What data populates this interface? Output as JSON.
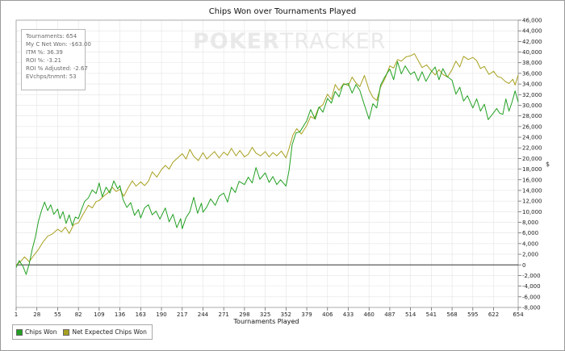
{
  "watermark": {
    "strong": "POKER",
    "light": "TRACKER"
  },
  "stats": {
    "tournaments": "Tournaments: 654",
    "net_won": "My C Net Won: -$63.00",
    "itm": "ITM %: 36.39",
    "roi": "ROI %: -3.21",
    "roi_adjusted": "ROI % Adjusted: -2.67",
    "evchips": "EVchps/tnmnt: 53"
  },
  "corner_mark": "$",
  "colors": {
    "chips_won": "#22a022",
    "net_expected": "#a8a020",
    "grid": "#e4e4e4",
    "zero_line": "#333333"
  },
  "chart_data": {
    "type": "line",
    "title": "Chips Won over Tournaments Played",
    "xlabel": "Tournaments Played",
    "ylabel": "",
    "xlim": [
      1,
      654
    ],
    "ylim": [
      -8000,
      46000
    ],
    "x_ticks": [
      1,
      28,
      55,
      82,
      109,
      136,
      163,
      190,
      217,
      244,
      271,
      298,
      325,
      352,
      379,
      406,
      433,
      460,
      487,
      514,
      541,
      568,
      595,
      622,
      654
    ],
    "y_ticks": [
      -8000,
      -6000,
      -4000,
      -2000,
      0,
      2000,
      4000,
      6000,
      8000,
      10000,
      12000,
      14000,
      16000,
      18000,
      20000,
      22000,
      24000,
      26000,
      28000,
      30000,
      32000,
      34000,
      36000,
      38000,
      40000,
      42000,
      44000,
      46000
    ],
    "y_tick_labels": [
      "-8,000",
      "-6,000",
      "-4,000",
      "-2,000",
      "0",
      "2,000",
      "4,000",
      "6,000",
      "8,000",
      "10,000",
      "12,000",
      "14,000",
      "16,000",
      "18,000",
      "20,000",
      "22,000",
      "24,000",
      "26,000",
      "28,000",
      "30,000",
      "32,000",
      "34,000",
      "36,000",
      "38,000",
      "40,000",
      "42,000",
      "44,000",
      "46,000"
    ],
    "grid": true,
    "legend_position": "bottom-left",
    "series": [
      {
        "name": "Chips Won",
        "color": "#22a022",
        "x": [
          1,
          5,
          10,
          14,
          18,
          22,
          26,
          30,
          34,
          38,
          42,
          46,
          50,
          55,
          58,
          62,
          66,
          70,
          74,
          78,
          82,
          86,
          90,
          95,
          100,
          105,
          109,
          113,
          118,
          123,
          128,
          133,
          136,
          140,
          145,
          150,
          155,
          160,
          163,
          168,
          173,
          178,
          183,
          188,
          190,
          195,
          200,
          205,
          210,
          215,
          217,
          222,
          227,
          232,
          237,
          242,
          244,
          249,
          254,
          260,
          265,
          271,
          276,
          281,
          286,
          291,
          298,
          303,
          308,
          313,
          318,
          325,
          330,
          335,
          340,
          345,
          352,
          356,
          360,
          365,
          370,
          379,
          384,
          390,
          395,
          400,
          406,
          411,
          416,
          421,
          426,
          433,
          438,
          443,
          448,
          453,
          460,
          465,
          470,
          475,
          480,
          487,
          492,
          497,
          502,
          507,
          514,
          519,
          524,
          529,
          534,
          541,
          546,
          551,
          556,
          561,
          568,
          573,
          578,
          583,
          588,
          595,
          600,
          605,
          610,
          615,
          622,
          626,
          630,
          634,
          638,
          642,
          646,
          650,
          654
        ],
        "values": [
          -500,
          800,
          -300,
          -1800,
          200,
          3000,
          5200,
          8200,
          10200,
          11800,
          10200,
          11300,
          9500,
          10500,
          8700,
          10000,
          7800,
          9400,
          7400,
          9000,
          8700,
          10400,
          11900,
          12600,
          14100,
          13400,
          15400,
          12800,
          14600,
          13500,
          15800,
          14300,
          14900,
          12300,
          10800,
          11700,
          9300,
          10400,
          8800,
          10700,
          11300,
          9400,
          10100,
          8600,
          9200,
          10700,
          8100,
          9500,
          7000,
          8700,
          6800,
          8900,
          10000,
          12700,
          9700,
          11600,
          9900,
          10900,
          12400,
          11200,
          12900,
          13500,
          11800,
          14600,
          13600,
          15700,
          15100,
          16500,
          15400,
          18300,
          16100,
          17300,
          15500,
          16600,
          15100,
          16000,
          14800,
          17800,
          22600,
          24800,
          25000,
          27100,
          29200,
          27400,
          29700,
          28700,
          31300,
          30400,
          32600,
          31600,
          33800,
          34100,
          32300,
          33900,
          32800,
          30500,
          27400,
          30300,
          29500,
          33800,
          35200,
          36800,
          34800,
          38200,
          35900,
          37400,
          35800,
          36300,
          34600,
          36300,
          34500,
          36300,
          37200,
          34800,
          36900,
          35500,
          34700,
          32100,
          33400,
          30800,
          31800,
          29500,
          31200,
          28900,
          30200,
          27300,
          28600,
          29400,
          28500,
          28300,
          31200,
          28900,
          30600,
          32700,
          30600
        ]
      },
      {
        "name": "Net Expected Chips Won",
        "color": "#a8a020",
        "x": [
          1,
          6,
          12,
          18,
          24,
          30,
          36,
          42,
          48,
          55,
          60,
          65,
          70,
          76,
          82,
          88,
          95,
          100,
          105,
          109,
          114,
          120,
          126,
          131,
          136,
          141,
          146,
          152,
          157,
          163,
          168,
          173,
          178,
          184,
          190,
          195,
          200,
          205,
          211,
          217,
          222,
          227,
          232,
          238,
          244,
          249,
          254,
          259,
          265,
          271,
          276,
          281,
          287,
          292,
          298,
          303,
          308,
          313,
          319,
          325,
          330,
          335,
          340,
          346,
          352,
          356,
          361,
          366,
          372,
          379,
          384,
          389,
          394,
          400,
          406,
          411,
          416,
          421,
          427,
          433,
          438,
          443,
          448,
          454,
          460,
          465,
          470,
          475,
          481,
          487,
          492,
          497,
          502,
          508,
          514,
          519,
          524,
          529,
          535,
          541,
          546,
          551,
          556,
          562,
          568,
          573,
          578,
          583,
          589,
          595,
          600,
          605,
          610,
          616,
          622,
          627,
          632,
          637,
          642,
          647,
          650,
          654
        ],
        "values": [
          0,
          500,
          1500,
          600,
          1800,
          2900,
          4300,
          5400,
          5800,
          6700,
          6200,
          7100,
          5900,
          7600,
          7900,
          9500,
          11200,
          10700,
          11900,
          12100,
          12800,
          13500,
          14600,
          13800,
          14200,
          12900,
          14300,
          15800,
          14800,
          15600,
          14900,
          15700,
          17500,
          16500,
          17900,
          18700,
          18000,
          19300,
          20100,
          20900,
          19900,
          21700,
          20400,
          19600,
          21100,
          19900,
          20600,
          21300,
          20100,
          21200,
          20600,
          21900,
          20500,
          21500,
          20300,
          20800,
          22100,
          21000,
          20500,
          21300,
          20300,
          21100,
          20500,
          21400,
          20100,
          21900,
          24400,
          25600,
          24600,
          26200,
          27900,
          27500,
          29400,
          30100,
          32100,
          31100,
          33900,
          32800,
          34100,
          33700,
          35300,
          34200,
          33500,
          35600,
          32900,
          31500,
          30900,
          33400,
          35100,
          37400,
          37000,
          38600,
          38300,
          39100,
          39300,
          39700,
          38400,
          37100,
          37600,
          36500,
          35700,
          36700,
          35800,
          35300,
          36700,
          38300,
          37200,
          39200,
          38600,
          39000,
          38400,
          36900,
          37300,
          35800,
          36400,
          35400,
          35200,
          34500,
          34100,
          34900,
          33800,
          35700
        ]
      }
    ]
  },
  "legend": [
    {
      "label": "Chips Won",
      "color": "#22a022"
    },
    {
      "label": "Net Expected Chips Won",
      "color": "#a8a020"
    }
  ]
}
